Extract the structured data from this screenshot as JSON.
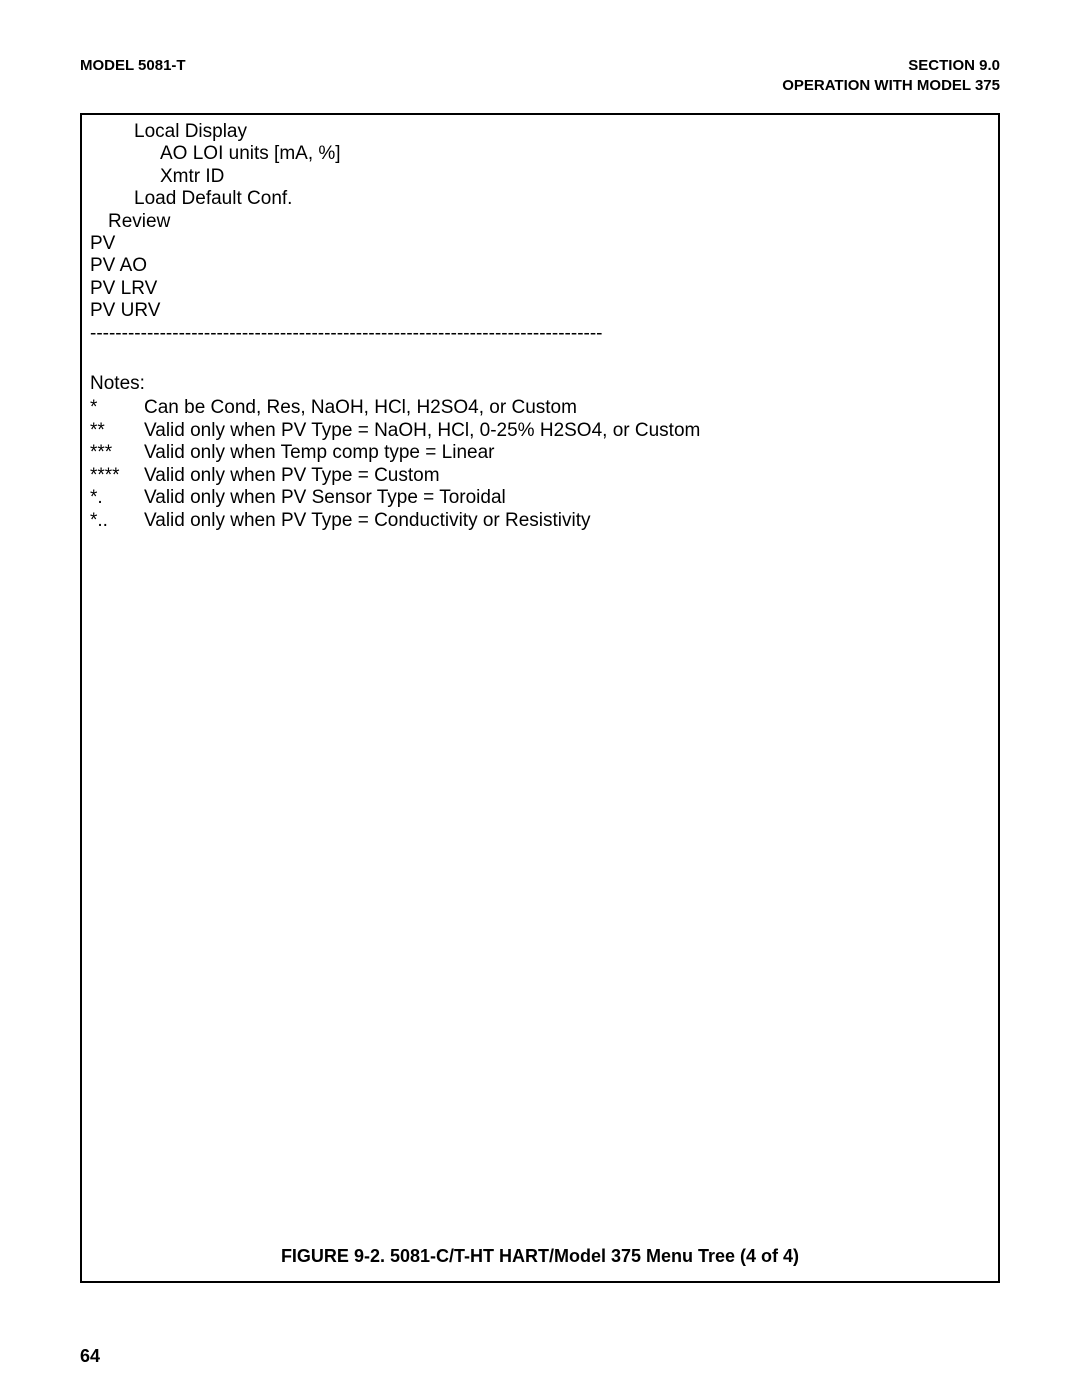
{
  "header": {
    "left": "MODEL 5081-T",
    "right_line1": "SECTION 9.0",
    "right_line2": "OPERATION WITH MODEL 375"
  },
  "menu": {
    "lines": [
      {
        "indent": 2,
        "text": "Local Display"
      },
      {
        "indent": 3,
        "text": "AO LOI units [mA, %]"
      },
      {
        "indent": 3,
        "text": "Xmtr ID"
      },
      {
        "indent": 2,
        "text": "Load Default Conf."
      },
      {
        "indent": 1,
        "text": "Review"
      },
      {
        "indent": 0,
        "text": "PV"
      },
      {
        "indent": 0,
        "text": "PV AO"
      },
      {
        "indent": 0,
        "text": "PV LRV"
      },
      {
        "indent": 0,
        "text": "PV URV"
      }
    ]
  },
  "divider": "---------------------------------------------------------------------------------",
  "notes": {
    "title": "Notes:",
    "items": [
      {
        "symbol": "*",
        "text": "Can be Cond, Res, NaOH, HCl, H2SO4, or Custom"
      },
      {
        "symbol": "**",
        "text": "Valid only when PV Type = NaOH, HCl, 0-25% H2SO4, or Custom"
      },
      {
        "symbol": "***",
        "text": "Valid only when Temp comp type = Linear"
      },
      {
        "symbol": "****",
        "text": "Valid only when PV Type = Custom"
      },
      {
        "symbol": "*.",
        "text": "Valid only when PV Sensor Type = Toroidal"
      },
      {
        "symbol": "*..",
        "text": "Valid only when PV Type = Conductivity or Resistivity"
      }
    ]
  },
  "figure_caption": "FIGURE 9-2. 5081-C/T-HT HART/Model 375 Menu Tree (4 of 4)",
  "page_number": "64"
}
